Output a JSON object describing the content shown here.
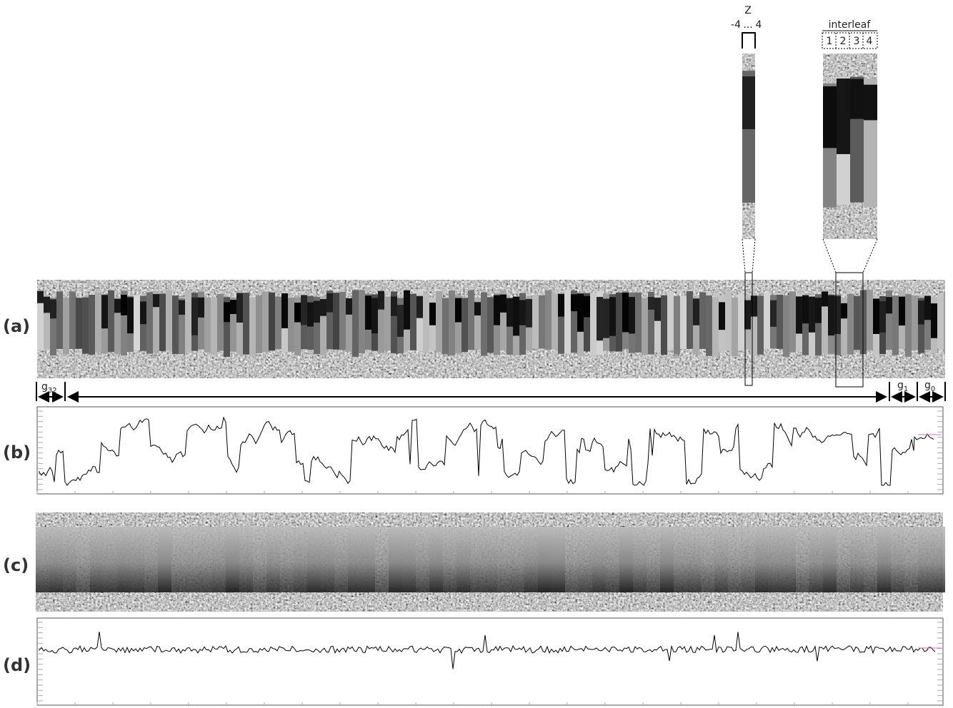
{
  "panels": {
    "labels": [
      "(a)",
      "(b)",
      "(c)",
      "(d)"
    ]
  },
  "z_inset": {
    "title": "Z",
    "range_start": "-4",
    "ellipsis": "...",
    "range_end": "4"
  },
  "interleaf_inset": {
    "title": "interleaf",
    "columns": [
      "1",
      "2",
      "3",
      "4"
    ]
  },
  "groups": [
    {
      "base": "g",
      "sub": "32"
    },
    {
      "base": "g",
      "sub": "1"
    },
    {
      "base": "g",
      "sub": "0"
    }
  ]
}
